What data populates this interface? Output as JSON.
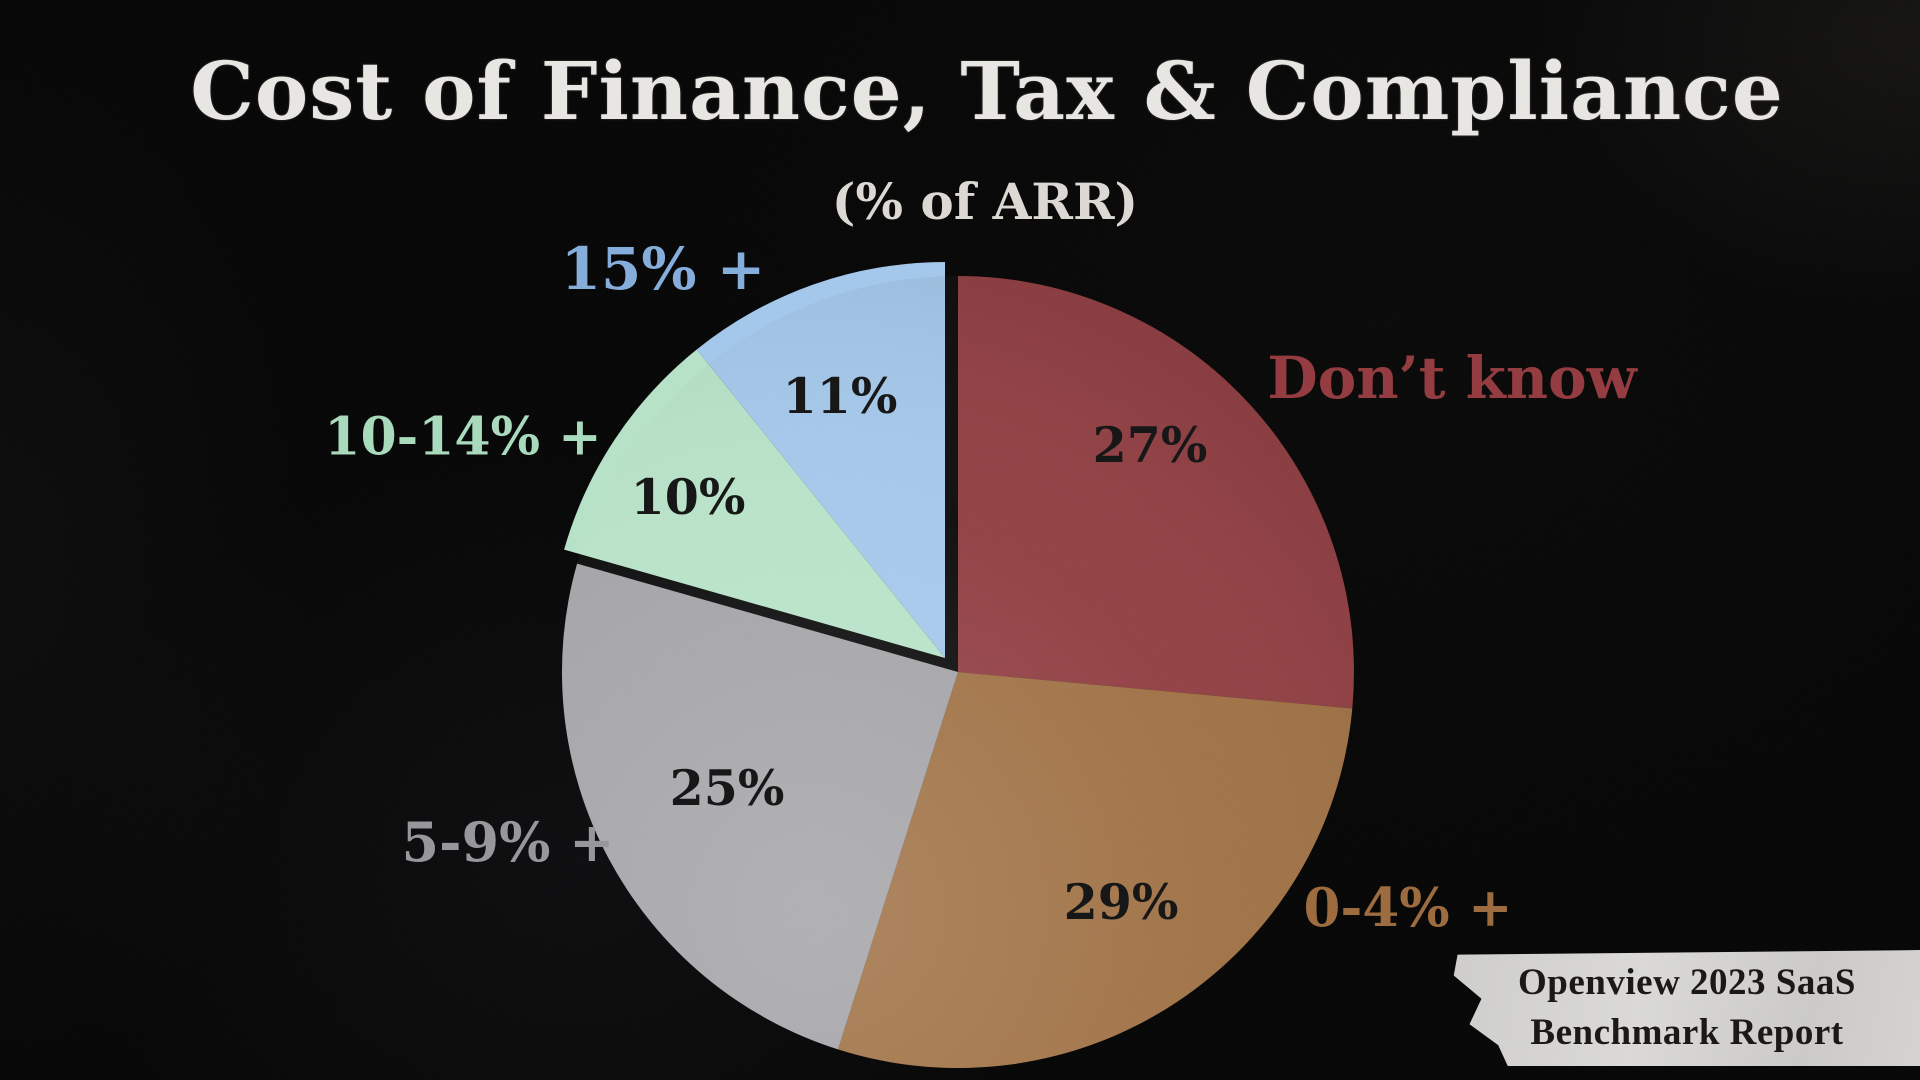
{
  "page": {
    "background_color": "#040404"
  },
  "title": "Cost of Finance, Tax & Compliance",
  "subtitle": "(% of ARR)",
  "attribution": {
    "line1": "Openview 2023 SaaS",
    "line2": "Benchmark Report",
    "paper_color": "#d3d1ce",
    "text_color": "#171513"
  },
  "chart_data": {
    "type": "pie",
    "title": "Cost of Finance, Tax & Compliance",
    "subtitle": "(% of ARR)",
    "unit": "% of ARR",
    "direction": "clockwise",
    "start_angle_deg": 0,
    "legend_position": "around-pie",
    "value_label_color": "#131313",
    "slices": [
      {
        "label": "Don’t know",
        "value": 27,
        "display": "27%",
        "color": "#8f3a3e",
        "label_color": "#93393e",
        "exploded": false
      },
      {
        "label": "0-4% +",
        "value": 29,
        "display": "29%",
        "color": "#9e6e40",
        "label_color": "#9c6a3c",
        "exploded": false
      },
      {
        "label": "5-9% +",
        "value": 25,
        "display": "25%",
        "color": "#a3a2a6",
        "label_color": "#97969a",
        "exploded": false
      },
      {
        "label": "10-14% +",
        "value": 10,
        "display": "10%",
        "color": "#b7e3c8",
        "label_color": "#a9dbbd",
        "exploded": true
      },
      {
        "label": "15% +",
        "value": 11,
        "display": "11%",
        "color": "#a3c8ec",
        "label_color": "#84addc",
        "exploded": true
      }
    ],
    "source": "Openview 2023 SaaS Benchmark Report"
  }
}
